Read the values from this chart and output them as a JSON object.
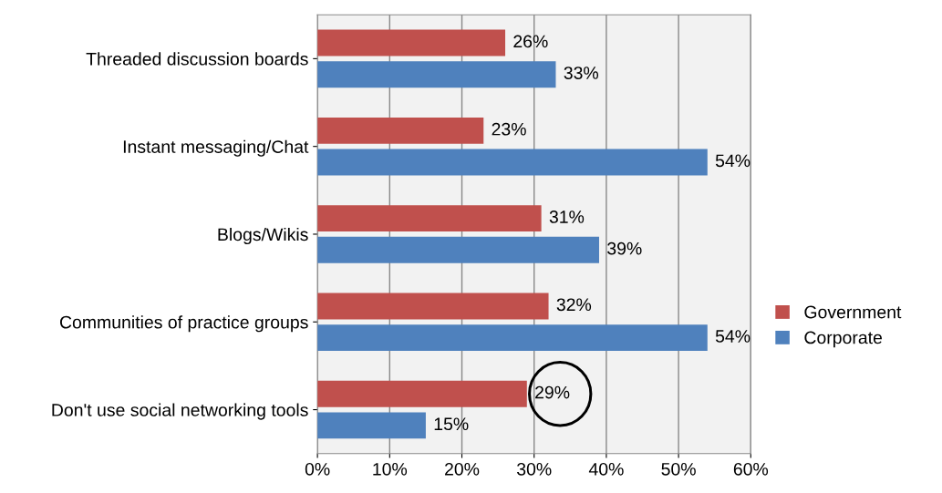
{
  "chart_data": {
    "type": "bar",
    "orientation": "horizontal",
    "categories": [
      "Threaded discussion boards",
      "Instant messaging/Chat",
      "Blogs/Wikis",
      "Communities of practice groups",
      "Don't use social networking tools"
    ],
    "series": [
      {
        "name": "Government",
        "color": "#c0504d",
        "values": [
          26,
          23,
          31,
          32,
          29
        ],
        "value_labels": [
          "26%",
          "23%",
          "31%",
          "32%",
          "29%"
        ]
      },
      {
        "name": "Corporate",
        "color": "#4f81bd",
        "values": [
          33,
          54,
          39,
          54,
          15
        ],
        "value_labels": [
          "33%",
          "54%",
          "39%",
          "54%",
          "15%"
        ]
      }
    ],
    "xlim": [
      0,
      60
    ],
    "xticks": [
      {
        "value": 0,
        "label": "0%"
      },
      {
        "value": 10,
        "label": "10%"
      },
      {
        "value": 20,
        "label": "20%"
      },
      {
        "value": 30,
        "label": "30%"
      },
      {
        "value": 40,
        "label": "40%"
      },
      {
        "value": 50,
        "label": "50%"
      },
      {
        "value": 60,
        "label": "60%"
      }
    ],
    "grid": "x",
    "legend": "right"
  }
}
